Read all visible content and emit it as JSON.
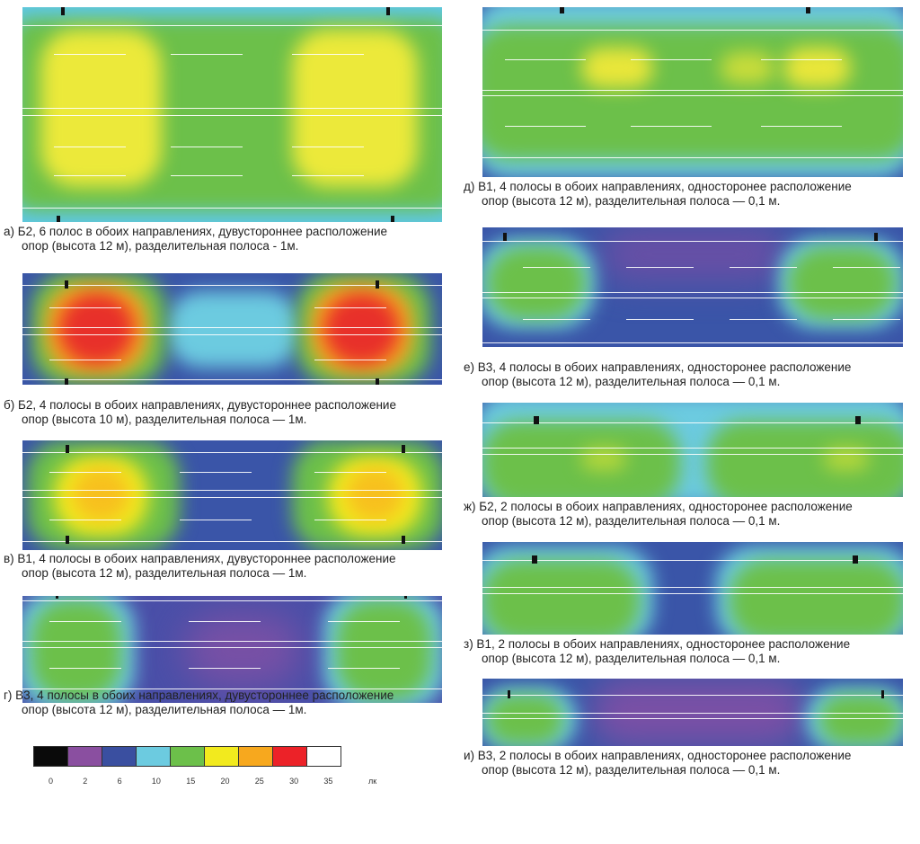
{
  "panels": [
    {
      "id": "a",
      "caption1": "а) Б2, 6 полос в обоих направлениях, дувустороннее расположение",
      "caption2": "опор (высота 12 м), разделительная полоса - 1м."
    },
    {
      "id": "b",
      "caption1": "б) Б2, 4 полосы в обоих направлениях, дувустороннее расположение",
      "caption2": "опор (высота 10 м), разделительная полоса — 1м."
    },
    {
      "id": "v",
      "caption1": "в) В1, 4 полосы в обоих направлениях, дувустороннее расположение",
      "caption2": "опор (высота 12 м), разделительная полоса — 1м."
    },
    {
      "id": "g",
      "caption1": "г) В3, 4 полосы в обоих направлениях, дувустороннее расположение",
      "caption2": "опор (высота 12 м), разделительная полоса — 1м."
    },
    {
      "id": "d",
      "caption1": "д) В1, 4 полосы в обоих направлениях, односторонее расположение",
      "caption2": "опор (высота 12 м), разделительная полоса — 0,1 м."
    },
    {
      "id": "e",
      "caption1": "е) В3, 4 полосы в обоих направлениях, односторонее расположение",
      "caption2": "опор (высота 12 м), разделительная полоса — 0,1 м."
    },
    {
      "id": "zh",
      "caption1": "ж) Б2, 2 полосы в обоих направлениях, односторонее расположение",
      "caption2": "опор (высота 12 м), разделительная полоса — 0,1 м."
    },
    {
      "id": "z",
      "caption1": "з) В1, 2 полосы в обоих направлениях, односторонее расположение",
      "caption2": "опор (высота 12 м), разделительная полоса — 0,1 м."
    },
    {
      "id": "i",
      "caption1": "и) В3, 2 полосы в обоих направлениях, односторонее расположение",
      "caption2": "опор (высота 12 м), разделительная полоса — 0,1 м."
    }
  ],
  "legend": {
    "unit": "лк",
    "steps": [
      {
        "label": "0",
        "color": "#0a0a0a"
      },
      {
        "label": "2",
        "color": "#8a4fa0"
      },
      {
        "label": "6",
        "color": "#3a4fa0"
      },
      {
        "label": "10",
        "color": "#6ccbe0"
      },
      {
        "label": "15",
        "color": "#6cc04a"
      },
      {
        "label": "20",
        "color": "#f2ea1e"
      },
      {
        "label": "25",
        "color": "#f7a81e"
      },
      {
        "label": "30",
        "color": "#ec2228"
      },
      {
        "label": "35",
        "color": "#ffffff"
      }
    ]
  }
}
